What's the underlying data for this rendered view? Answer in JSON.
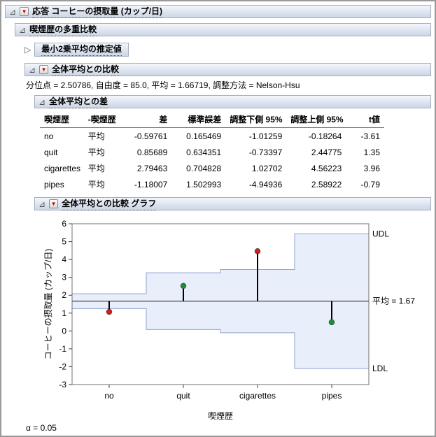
{
  "icons": {
    "disclosure_open": "⊿",
    "disclosure_closed": "▷",
    "red_triangle": "▼"
  },
  "outlines": {
    "response": "応答 コーヒーの摂取量 (カップ/日)",
    "multiple_comparison": "喫煙歴の多重比較",
    "lsmeans_collapsed": "最小2乗平均の推定値",
    "anom": "全体平均との比較",
    "diff": "全体平均との差",
    "anom_graph": "全体平均との比較 グラフ"
  },
  "anom_info": "分位点 = 2.50786, 自由度 = 85.0, 平均 = 1.66719, 調整方法 = Nelson-Hsu",
  "alpha_note": "α = 0.05",
  "diff_table": {
    "columns": [
      "喫煙歴",
      "-喫煙歴",
      "差",
      "標準誤差",
      "調整下側 95%",
      "調整上側 95%",
      "t値"
    ],
    "rows": [
      [
        "no",
        "平均",
        "-0.59761",
        "0.165469",
        "-1.01259",
        "-0.18264",
        "-3.61"
      ],
      [
        "quit",
        "平均",
        "0.85689",
        "0.634351",
        "-0.73397",
        "2.44775",
        "1.35"
      ],
      [
        "cigarettes",
        "平均",
        "2.79463",
        "0.704828",
        "1.02702",
        "4.56223",
        "3.96"
      ],
      [
        "pipes",
        "平均",
        "-1.18007",
        "1.502993",
        "-4.94936",
        "2.58922",
        "-0.79"
      ]
    ]
  },
  "chart_data": {
    "type": "anom",
    "title": "全体平均との比較 グラフ",
    "xlabel": "喫煙歴",
    "ylabel": "コーヒーの摂取量 (カップ/日)",
    "ylim": [
      -3,
      6
    ],
    "yticks": [
      -3,
      -2,
      -1,
      0,
      1,
      2,
      3,
      4,
      5,
      6
    ],
    "categories": [
      "no",
      "quit",
      "cigarettes",
      "pipes"
    ],
    "group_means": [
      1.06958,
      2.52408,
      4.46182,
      0.48712
    ],
    "udl": [
      2.08216,
      3.25805,
      3.43481,
      5.43648
    ],
    "ldl": [
      1.25222,
      0.07633,
      -0.10043,
      -2.1021
    ],
    "overall_mean": 1.66719,
    "significant": [
      true,
      false,
      true,
      false
    ],
    "labels": {
      "udl": "UDL",
      "mean": "平均 = 1.67",
      "ldl": "LDL"
    },
    "colors": {
      "band_fill": "#e8eefa",
      "band_stroke": "#8fa3cc",
      "mean_line": "#4a4a4a",
      "needle": "#000000",
      "significant_point": "#cc1f1f",
      "nonsignificant_point": "#1d8a3c",
      "frame": "#707070"
    }
  }
}
